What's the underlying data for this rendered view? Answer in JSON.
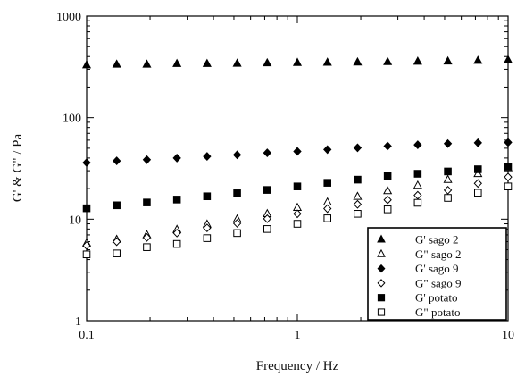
{
  "chart_data": {
    "type": "scatter",
    "title": "",
    "xlabel": "Frequency / Hz",
    "ylabel": "G' & G\" / Pa",
    "xscale": "log",
    "yscale": "log",
    "xlim": [
      0.1,
      10
    ],
    "ylim": [
      1,
      1000
    ],
    "xticks": [
      0.1,
      1,
      10
    ],
    "xtick_labels": [
      "0.1",
      "1",
      "10"
    ],
    "yticks": [
      1,
      10,
      100,
      1000
    ],
    "ytick_labels": [
      "1",
      "10",
      "100",
      "1000"
    ],
    "grid": false,
    "legend_position": "bottom-right",
    "x": [
      0.1,
      0.1389,
      0.1931,
      0.2683,
      0.3728,
      0.518,
      0.7197,
      1.0,
      1.3895,
      1.9307,
      2.6827,
      3.7276,
      5.1795,
      7.1969,
      10.0
    ],
    "series": [
      {
        "name": "G' sago 2",
        "marker": "triangle-filled",
        "values": [
          330,
          335,
          335,
          340,
          340,
          342,
          345,
          348,
          350,
          352,
          355,
          358,
          360,
          365,
          370
        ]
      },
      {
        "name": "G\" sago 2",
        "marker": "triangle-open",
        "values": [
          5.8,
          6.3,
          7.0,
          7.9,
          8.9,
          10.0,
          11.3,
          13.0,
          14.7,
          16.7,
          19.0,
          21.5,
          24.5,
          28.0,
          32.0
        ]
      },
      {
        "name": "G' sago 9",
        "marker": "diamond-filled",
        "values": [
          36,
          37.5,
          38.5,
          40,
          41.5,
          43,
          45,
          46.5,
          48.5,
          50.5,
          52.5,
          54,
          55.5,
          56.5,
          57
        ]
      },
      {
        "name": "G\" sago 9",
        "marker": "diamond-open",
        "values": [
          5.5,
          6.0,
          6.6,
          7.3,
          8.2,
          9.1,
          10.1,
          11.3,
          12.7,
          14.0,
          15.5,
          17.2,
          19.3,
          22.5,
          26.0
        ]
      },
      {
        "name": "G' potato",
        "marker": "square-filled",
        "values": [
          12.8,
          13.7,
          14.6,
          15.6,
          16.8,
          18.0,
          19.4,
          21.0,
          22.8,
          24.5,
          26.5,
          28.0,
          29.5,
          31.0,
          33.0
        ]
      },
      {
        "name": "G\" potato",
        "marker": "square-open",
        "values": [
          4.5,
          4.6,
          5.3,
          5.7,
          6.5,
          7.3,
          8.0,
          9.0,
          10.2,
          11.3,
          12.5,
          14.5,
          16.2,
          18.2,
          21.0
        ]
      }
    ]
  }
}
